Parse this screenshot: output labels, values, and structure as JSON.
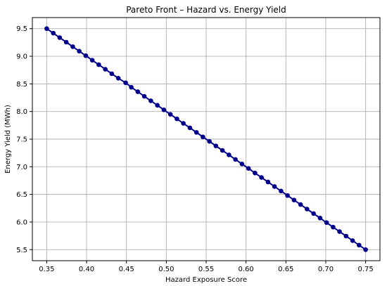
{
  "chart_data": {
    "type": "line",
    "title": "Pareto Front – Hazard vs. Energy Yield",
    "xlabel": "Hazard Exposure Score",
    "ylabel": "Energy Yield (MWh)",
    "xlim": [
      0.332,
      0.768
    ],
    "ylim": [
      5.3,
      9.7
    ],
    "x_ticks": [
      0.35,
      0.4,
      0.45,
      0.5,
      0.55,
      0.6,
      0.65,
      0.7,
      0.75
    ],
    "x_tick_labels": [
      "0.35",
      "0.40",
      "0.45",
      "0.50",
      "0.55",
      "0.60",
      "0.65",
      "0.70",
      "0.75"
    ],
    "y_ticks": [
      5.5,
      6.0,
      6.5,
      7.0,
      7.5,
      8.0,
      8.5,
      9.0,
      9.5
    ],
    "y_tick_labels": [
      "5.5",
      "6.0",
      "6.5",
      "7.0",
      "7.5",
      "8.0",
      "8.5",
      "9.0",
      "9.5"
    ],
    "grid": true,
    "colors": {
      "line": "#00008b",
      "marker": "#00008b",
      "grid": "#b0b0b0",
      "axis": "#000000",
      "text": "#000000"
    },
    "series": [
      {
        "x": [
          0.35,
          0.3582,
          0.3663,
          0.3745,
          0.3827,
          0.3908,
          0.399,
          0.4071,
          0.4153,
          0.4235,
          0.4316,
          0.4398,
          0.449,
          0.4561,
          0.4643,
          0.4724,
          0.4806,
          0.4888,
          0.4969,
          0.5051,
          0.5133,
          0.5214,
          0.5296,
          0.5378,
          0.5459,
          0.5541,
          0.5622,
          0.5704,
          0.5786,
          0.5867,
          0.5949,
          0.6031,
          0.6112,
          0.6194,
          0.6276,
          0.6357,
          0.6439,
          0.652,
          0.6602,
          0.6684,
          0.6765,
          0.6847,
          0.6929,
          0.701,
          0.7092,
          0.7173,
          0.7255,
          0.7337,
          0.7418,
          0.75
        ],
        "y": [
          9.5,
          9.4184,
          9.3367,
          9.2551,
          9.1735,
          9.0918,
          9.0102,
          8.9286,
          8.8469,
          8.7653,
          8.6837,
          8.602,
          8.5204,
          8.4388,
          8.3571,
          8.2755,
          8.1939,
          8.1122,
          8.0306,
          7.949,
          7.8673,
          7.7857,
          7.7041,
          7.6224,
          7.5408,
          7.4592,
          7.3776,
          7.2959,
          7.2143,
          7.1327,
          7.051,
          6.9694,
          6.8878,
          6.8061,
          6.7245,
          6.6429,
          6.5612,
          6.4796,
          6.398,
          6.3163,
          6.2347,
          6.1531,
          6.0714,
          5.9898,
          5.9082,
          5.8265,
          5.7449,
          5.6633,
          5.5816,
          5.5
        ]
      }
    ]
  }
}
